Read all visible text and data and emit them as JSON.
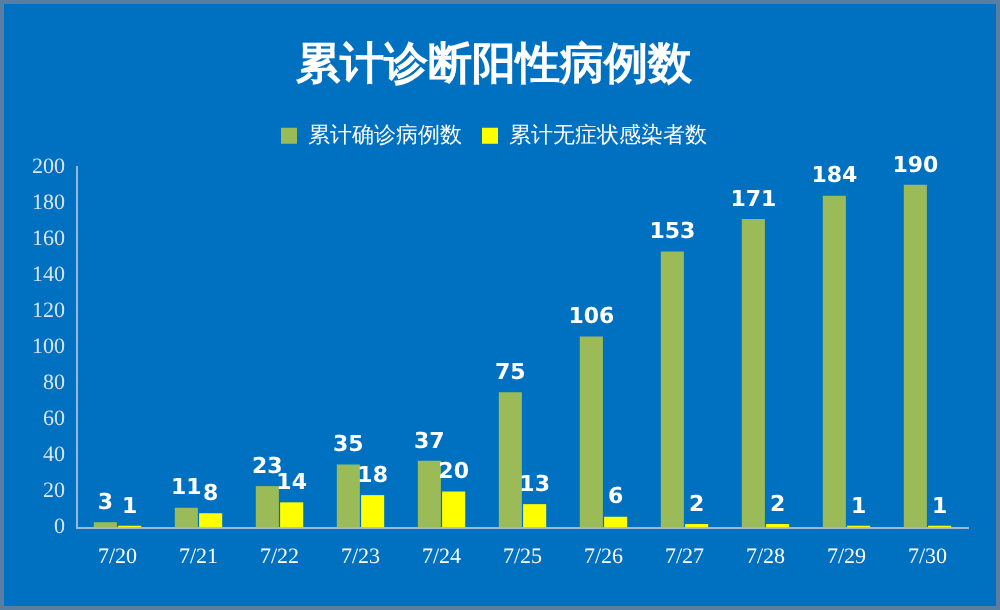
{
  "chart_data": {
    "type": "bar",
    "title": "累计诊断阳性病例数",
    "categories": [
      "7/20",
      "7/21",
      "7/22",
      "7/23",
      "7/24",
      "7/25",
      "7/26",
      "7/27",
      "7/28",
      "7/29",
      "7/30"
    ],
    "series": [
      {
        "name": "累计确诊病例数",
        "color": "#9bbb59",
        "values": [
          3,
          11,
          23,
          35,
          37,
          75,
          106,
          153,
          171,
          184,
          190
        ]
      },
      {
        "name": "累计无症状感染者数",
        "color": "#ffff00",
        "values": [
          1,
          8,
          14,
          18,
          20,
          13,
          6,
          2,
          2,
          1,
          1
        ]
      }
    ],
    "ylim": [
      0,
      200
    ],
    "yticks": [
      0,
      20,
      40,
      60,
      80,
      100,
      120,
      140,
      160,
      180,
      200
    ],
    "grid": false,
    "legend": "top",
    "data_labels": true
  }
}
